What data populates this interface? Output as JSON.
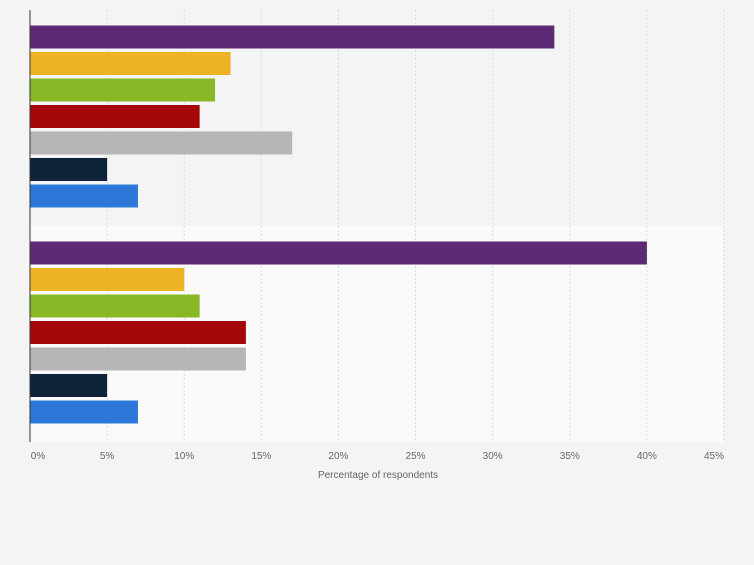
{
  "chart_data": {
    "type": "bar",
    "orientation": "horizontal",
    "title": "",
    "xlabel": "Percentage of respondents",
    "ylabel": "",
    "xlim": [
      0,
      45
    ],
    "x_ticks": [
      "0%",
      "5%",
      "10%",
      "15%",
      "20%",
      "25%",
      "30%",
      "35%",
      "40%",
      "45%"
    ],
    "grid": true,
    "legend": "none",
    "groups": [
      {
        "values": [
          34,
          13,
          12,
          11,
          17,
          5,
          7
        ],
        "colors": [
          "#5b2a72",
          "#ecb424",
          "#88b825",
          "#a40808",
          "#b6b6b6",
          "#0d2338",
          "#2b78d9"
        ]
      },
      {
        "values": [
          40,
          10,
          11,
          14,
          14,
          5,
          7
        ],
        "colors": [
          "#5b2a72",
          "#ecb424",
          "#88b825",
          "#a40808",
          "#b6b6b6",
          "#0d2338",
          "#2b78d9"
        ]
      }
    ]
  },
  "colors": {
    "background": "#f4f4f4",
    "band_1": "#f4f4f4",
    "band_2": "#fafafa",
    "grid": "#dddddd",
    "axis": "#333333",
    "tick_text": "#666666"
  }
}
